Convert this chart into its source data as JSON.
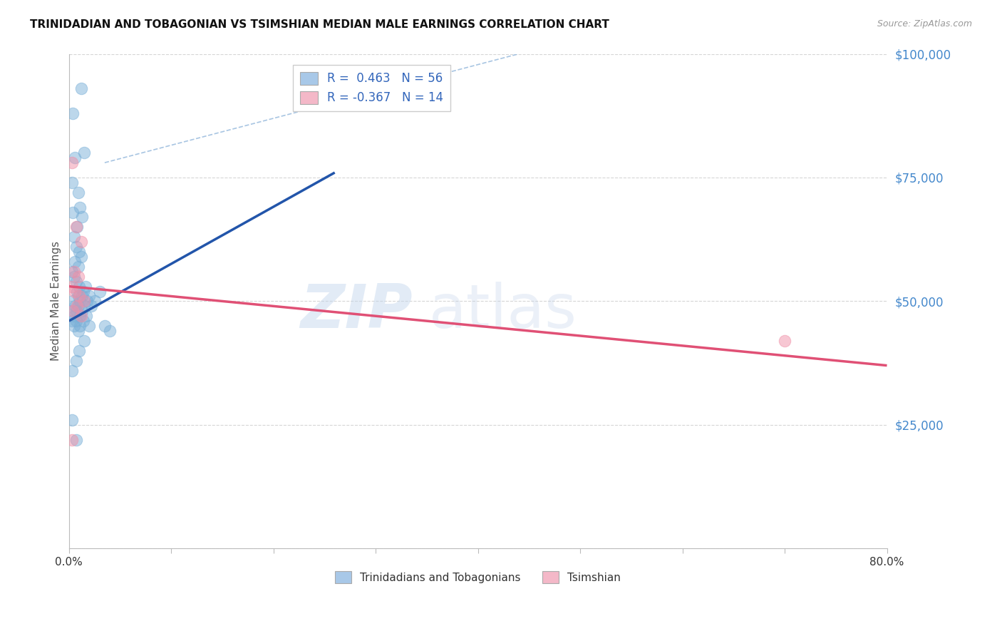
{
  "title": "TRINIDADIAN AND TOBAGONIAN VS TSIMSHIAN MEDIAN MALE EARNINGS CORRELATION CHART",
  "source": "Source: ZipAtlas.com",
  "ylabel": "Median Male Earnings",
  "xlim": [
    0,
    0.8
  ],
  "ylim": [
    0,
    100000
  ],
  "xticks": [
    0.0,
    0.1,
    0.2,
    0.3,
    0.4,
    0.5,
    0.6,
    0.7,
    0.8
  ],
  "xtick_labels": [
    "0.0%",
    "",
    "",
    "",
    "",
    "",
    "",
    "",
    "80.0%"
  ],
  "yticks": [
    0,
    25000,
    50000,
    75000,
    100000
  ],
  "ytick_labels": [
    "",
    "$25,000",
    "$50,000",
    "$75,000",
    "$100,000"
  ],
  "watermark_zip": "ZIP",
  "watermark_atlas": "atlas",
  "legend_items": [
    {
      "label_prefix": "R = ",
      "R": " 0.463",
      "label_mid": "  N = ",
      "N": "56",
      "color": "#a8c8e8"
    },
    {
      "label_prefix": "R = ",
      "R": "-0.367",
      "label_mid": "  N = ",
      "N": "14",
      "color": "#f4b8c8"
    }
  ],
  "legend_bottom": [
    {
      "label": "Trinidadians and Tobagonians",
      "color": "#a8c8e8"
    },
    {
      "label": "Tsimshian",
      "color": "#f4b8c8"
    }
  ],
  "blue_dots": [
    [
      0.004,
      88000
    ],
    [
      0.012,
      93000
    ],
    [
      0.006,
      79000
    ],
    [
      0.015,
      80000
    ],
    [
      0.003,
      74000
    ],
    [
      0.009,
      72000
    ],
    [
      0.011,
      69000
    ],
    [
      0.004,
      68000
    ],
    [
      0.008,
      65000
    ],
    [
      0.013,
      67000
    ],
    [
      0.005,
      63000
    ],
    [
      0.007,
      61000
    ],
    [
      0.01,
      60000
    ],
    [
      0.006,
      58000
    ],
    [
      0.009,
      57000
    ],
    [
      0.012,
      59000
    ],
    [
      0.003,
      56000
    ],
    [
      0.005,
      55000
    ],
    [
      0.007,
      54000
    ],
    [
      0.008,
      52000
    ],
    [
      0.01,
      53000
    ],
    [
      0.013,
      51000
    ],
    [
      0.004,
      50000
    ],
    [
      0.006,
      49000
    ],
    [
      0.009,
      51000
    ],
    [
      0.011,
      50000
    ],
    [
      0.014,
      52000
    ],
    [
      0.016,
      53000
    ],
    [
      0.003,
      48000
    ],
    [
      0.005,
      47000
    ],
    [
      0.007,
      48000
    ],
    [
      0.009,
      49000
    ],
    [
      0.011,
      47000
    ],
    [
      0.013,
      48000
    ],
    [
      0.015,
      49000
    ],
    [
      0.018,
      50000
    ],
    [
      0.02,
      51000
    ],
    [
      0.003,
      46000
    ],
    [
      0.005,
      45000
    ],
    [
      0.007,
      46000
    ],
    [
      0.009,
      44000
    ],
    [
      0.011,
      45000
    ],
    [
      0.014,
      46000
    ],
    [
      0.017,
      47000
    ],
    [
      0.022,
      49000
    ],
    [
      0.025,
      50000
    ],
    [
      0.03,
      52000
    ],
    [
      0.035,
      45000
    ],
    [
      0.003,
      36000
    ],
    [
      0.007,
      38000
    ],
    [
      0.01,
      40000
    ],
    [
      0.015,
      42000
    ],
    [
      0.003,
      26000
    ],
    [
      0.007,
      22000
    ],
    [
      0.02,
      45000
    ],
    [
      0.04,
      44000
    ]
  ],
  "pink_dots": [
    [
      0.003,
      78000
    ],
    [
      0.007,
      65000
    ],
    [
      0.012,
      62000
    ],
    [
      0.005,
      56000
    ],
    [
      0.009,
      55000
    ],
    [
      0.003,
      53000
    ],
    [
      0.006,
      52000
    ],
    [
      0.01,
      51000
    ],
    [
      0.015,
      50000
    ],
    [
      0.004,
      48000
    ],
    [
      0.008,
      49000
    ],
    [
      0.012,
      47000
    ],
    [
      0.7,
      42000
    ],
    [
      0.003,
      22000
    ]
  ],
  "blue_line_x": [
    0.0,
    0.26
  ],
  "blue_line_y": [
    46000,
    76000
  ],
  "pink_line_x": [
    0.0,
    0.8
  ],
  "pink_line_y": [
    53000,
    37000
  ],
  "diag_line_x": [
    0.035,
    0.44
  ],
  "diag_line_y": [
    78000,
    100000
  ],
  "R_blue": 0.463,
  "N_blue": 56,
  "R_pink": -0.367,
  "N_pink": 14,
  "bg_color": "#ffffff",
  "grid_color": "#cccccc",
  "axis_color": "#bbbbbb",
  "blue_dot_color": "#7ab0d8",
  "pink_dot_color": "#f090a8",
  "blue_line_color": "#2255aa",
  "pink_line_color": "#e05075",
  "diag_line_color": "#99bbdd",
  "title_color": "#111111",
  "source_color": "#999999",
  "ytick_color": "#4488cc",
  "xtick_color": "#333333"
}
